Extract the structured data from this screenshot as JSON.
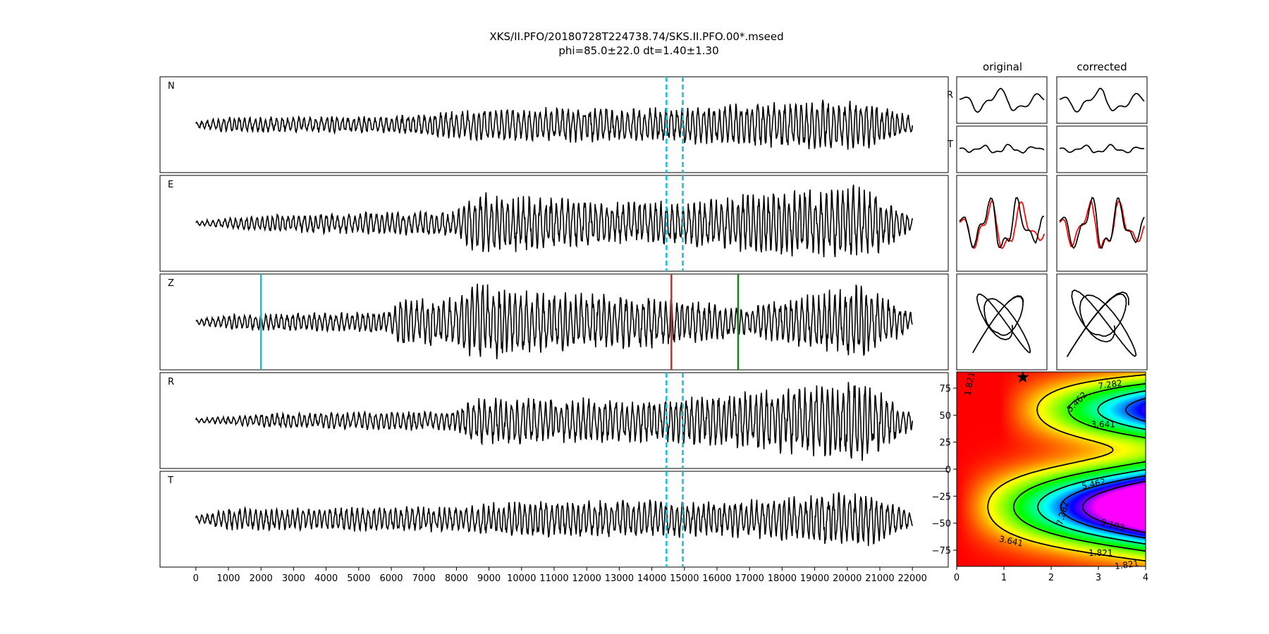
{
  "title_line1": "XKS/II.PFO/20180728T224738.74/SKS.II.PFO.00*.mseed",
  "title_line2": "phi=85.0±22.0 dt=1.40±1.30",
  "column_original": "original",
  "column_corrected": "corrected",
  "colors": {
    "trace": "#000000",
    "window": "#17becf",
    "pick_cyan": "#17becf",
    "pick_red": "#d62728",
    "pick_green": "#1a7f1a",
    "overlay": "#ff0000",
    "star": "#000000"
  },
  "chart_data": [
    {
      "type": "line",
      "name": "seismogram-panels",
      "panels": [
        "N",
        "E",
        "Z",
        "R",
        "T"
      ],
      "xlim": [
        -1100,
        23100
      ],
      "xticks": [
        "0",
        "1000",
        "2000",
        "3000",
        "4000",
        "5000",
        "6000",
        "7000",
        "8000",
        "9000",
        "10000",
        "11000",
        "12000",
        "13000",
        "14000",
        "15000",
        "16000",
        "17000",
        "18000",
        "19000",
        "20000",
        "21000",
        "22000"
      ],
      "trace_start": 0,
      "trace_end": 22000,
      "analysis_window": [
        14450,
        14950
      ],
      "z_picks": [
        2000,
        14600,
        16650
      ],
      "amplitude_envelope": {
        "N": [
          [
            0,
            0.08
          ],
          [
            1000,
            0.18
          ],
          [
            6000,
            0.2
          ],
          [
            9000,
            0.4
          ],
          [
            14000,
            0.4
          ],
          [
            15000,
            0.45
          ],
          [
            20500,
            0.6
          ],
          [
            22000,
            0.2
          ]
        ],
        "E": [
          [
            0,
            0.05
          ],
          [
            2000,
            0.2
          ],
          [
            8000,
            0.3
          ],
          [
            8500,
            0.75
          ],
          [
            10000,
            0.65
          ],
          [
            14000,
            0.5
          ],
          [
            15000,
            0.55
          ],
          [
            20500,
            0.9
          ],
          [
            22000,
            0.2
          ]
        ],
        "Z": [
          [
            0,
            0.05
          ],
          [
            1000,
            0.18
          ],
          [
            6000,
            0.25
          ],
          [
            6300,
            0.6
          ],
          [
            8000,
            0.55
          ],
          [
            8500,
            0.95
          ],
          [
            10000,
            0.75
          ],
          [
            14000,
            0.6
          ],
          [
            17000,
            0.35
          ],
          [
            20500,
            0.9
          ],
          [
            22000,
            0.2
          ]
        ],
        "R": [
          [
            0,
            0.05
          ],
          [
            2500,
            0.18
          ],
          [
            8000,
            0.25
          ],
          [
            8500,
            0.55
          ],
          [
            14000,
            0.5
          ],
          [
            15000,
            0.55
          ],
          [
            20500,
            0.95
          ],
          [
            22000,
            0.2
          ]
        ],
        "T": [
          [
            0,
            0.08
          ],
          [
            1000,
            0.25
          ],
          [
            8000,
            0.3
          ],
          [
            9000,
            0.4
          ],
          [
            14000,
            0.45
          ],
          [
            16000,
            0.4
          ],
          [
            20500,
            0.65
          ],
          [
            22000,
            0.2
          ]
        ]
      }
    },
    {
      "type": "heatmap",
      "name": "error-surface",
      "xlim": [
        0,
        4
      ],
      "ylim": [
        -90,
        90
      ],
      "xticks": [
        "0",
        "1",
        "2",
        "3",
        "4"
      ],
      "yticks": [
        "75",
        "50",
        "25",
        "0",
        "−25",
        "−50",
        "−75"
      ],
      "ytick_values": [
        75,
        50,
        25,
        0,
        -25,
        -50,
        -75
      ],
      "contour_levels": [
        "1.821",
        "3.641",
        "5.462",
        "7.282",
        "9.103"
      ],
      "best_fit": {
        "dt": 1.4,
        "phi": 85.0
      }
    }
  ]
}
